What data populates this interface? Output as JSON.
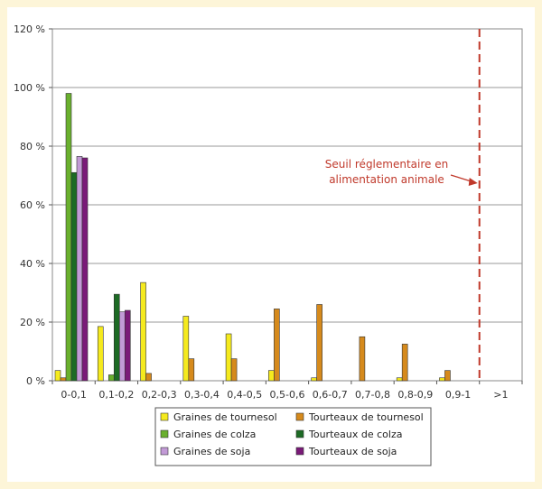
{
  "chart_data": {
    "type": "bar",
    "categories": [
      "0-0,1",
      "0,1-0,2",
      "0,2-0,3",
      "0,3-0,4",
      "0,4-0,5",
      "0,5-0,6",
      "0,6-0,7",
      "0,7-0,8",
      "0,8-0,9",
      "0,9-1",
      ">1"
    ],
    "ylim": [
      0,
      120
    ],
    "yticks": [
      {
        "value": 0,
        "label": "0 %"
      },
      {
        "value": 20,
        "label": "20 %"
      },
      {
        "value": 40,
        "label": "40 %"
      },
      {
        "value": 60,
        "label": "60 %"
      },
      {
        "value": 80,
        "label": "80 %"
      },
      {
        "value": 100,
        "label": "100 %"
      },
      {
        "value": 120,
        "label": "120 %"
      }
    ],
    "grid": true,
    "legend_position": "bottom",
    "series": [
      {
        "name": "Graines de tournesol",
        "color": "#f5ea1e",
        "values": [
          3.5,
          18.5,
          33.5,
          22,
          16,
          3.5,
          1,
          0,
          1,
          1,
          0
        ]
      },
      {
        "name": "Tourteaux de tournesol",
        "color": "#d68a1c",
        "values": [
          1,
          0,
          2.5,
          7.5,
          7.5,
          24.5,
          26,
          15,
          12.5,
          3.5,
          0
        ]
      },
      {
        "name": "Graines de colza",
        "color": "#6ab02e",
        "values": [
          98,
          2,
          0,
          0,
          0,
          0,
          0,
          0,
          0,
          0,
          0
        ]
      },
      {
        "name": "Tourteaux de colza",
        "color": "#1d6b25",
        "values": [
          71,
          29.5,
          0,
          0,
          0,
          0,
          0,
          0,
          0,
          0,
          0
        ]
      },
      {
        "name": "Graines de soja",
        "color": "#c29ad6",
        "values": [
          76.5,
          23.5,
          0,
          0,
          0,
          0,
          0,
          0,
          0,
          0,
          0
        ]
      },
      {
        "name": "Tourteaux de soja",
        "color": "#7a1a78",
        "values": [
          76,
          24,
          0,
          0,
          0,
          0,
          0,
          0,
          0,
          0,
          0
        ]
      }
    ],
    "annotation": {
      "lines": [
        "Seuil réglementaire en",
        "alimentation animale"
      ],
      "color": "#c0392b",
      "threshold_boundary": 10
    }
  }
}
